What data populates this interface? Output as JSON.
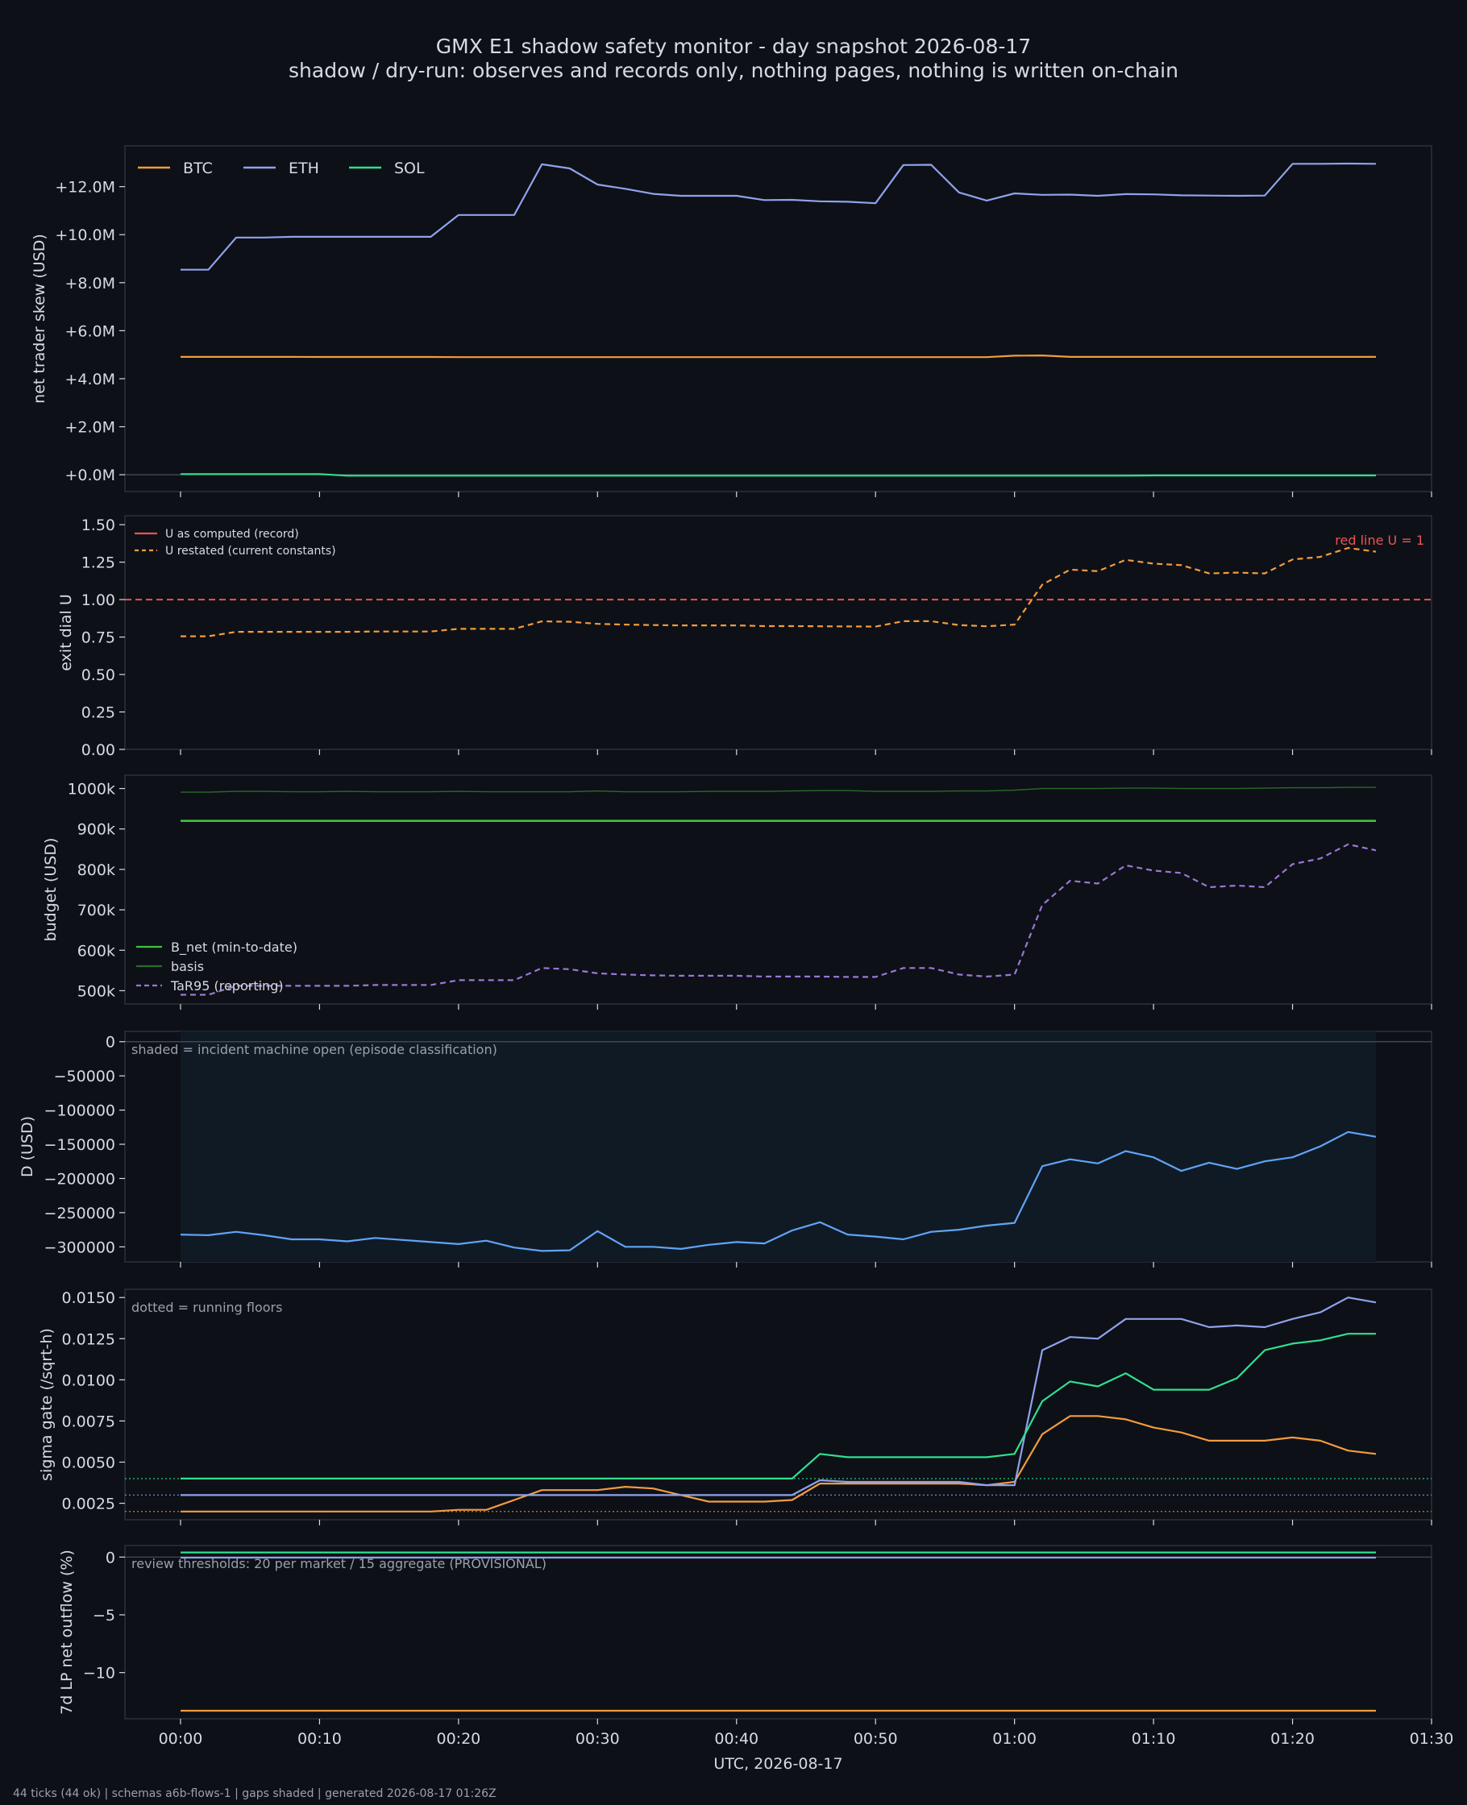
{
  "title": "GMX E1 shadow safety monitor - day snapshot 2026-08-17",
  "subtitle": "shadow / dry-run: observes and records only, nothing pages, nothing is written on-chain",
  "footer": "44 ticks (44 ok) | schemas a6b-flows-1 | gaps shaded | generated 2026-08-17 01:26Z",
  "colors": {
    "background": "#0d1017",
    "frame": "#2c313b",
    "text": "#d7dae0",
    "muted": "#9aa0aa",
    "btc": "#f39c3c",
    "eth": "#8fa3ec",
    "sol": "#2fe08f",
    "red": "#ee5350",
    "b_net": "#3fc23f",
    "basis": "#2a6a2a",
    "tar95": "#9a78d4",
    "d": "#61a4f5",
    "shade": "#101a25"
  },
  "chart_data": [
    {
      "type": "line",
      "ylabel": "net trader skew (USD)",
      "ylim": [
        -700000,
        13700000
      ],
      "yticks": [
        0,
        2000000,
        4000000,
        6000000,
        8000000,
        10000000,
        12000000
      ],
      "yticklabels": [
        "+0.0M",
        "+2.0M",
        "+4.0M",
        "+6.0M",
        "+8.0M",
        "+10.0M",
        "+12.0M"
      ],
      "zero_line": true,
      "legend": {
        "position": "top-left",
        "layout": "horizontal"
      },
      "series": [
        {
          "name": "BTC",
          "color_key": "btc",
          "values": [
            4910000,
            4910000,
            4910000,
            4910000,
            4910000,
            4905000,
            4905000,
            4905000,
            4905000,
            4905000,
            4900000,
            4900000,
            4900000,
            4900000,
            4900000,
            4900000,
            4900000,
            4900000,
            4900000,
            4900000,
            4900000,
            4900000,
            4900000,
            4900000,
            4900000,
            4900000,
            4900000,
            4900000,
            4900000,
            4900000,
            4960000,
            4970000,
            4910000,
            4910000,
            4910000,
            4910000,
            4910000,
            4910000,
            4910000,
            4910000,
            4910000,
            4910000,
            4910000,
            4910000
          ]
        },
        {
          "name": "ETH",
          "color_key": "eth",
          "values": [
            8540000,
            8540000,
            9880000,
            9880000,
            9910000,
            9910000,
            9910000,
            9910000,
            9910000,
            9910000,
            10820000,
            10820000,
            10820000,
            12930000,
            12760000,
            12090000,
            11910000,
            11700000,
            11620000,
            11620000,
            11620000,
            11440000,
            11450000,
            11390000,
            11370000,
            11310000,
            12900000,
            12910000,
            11760000,
            11420000,
            11720000,
            11660000,
            11670000,
            11620000,
            11690000,
            11680000,
            11640000,
            11630000,
            11620000,
            11630000,
            12950000,
            12950000,
            12960000,
            12950000
          ]
        },
        {
          "name": "SOL",
          "color_key": "sol",
          "values": [
            30000,
            30000,
            30000,
            30000,
            30000,
            30000,
            -40000,
            -40000,
            -40000,
            -40000,
            -40000,
            -40000,
            -40000,
            -40000,
            -40000,
            -40000,
            -40000,
            -40000,
            -40000,
            -40000,
            -40000,
            -40000,
            -40000,
            -40000,
            -40000,
            -40000,
            -40000,
            -40000,
            -40000,
            -40000,
            -40000,
            -40000,
            -40000,
            -40000,
            -40000,
            -30000,
            -30000,
            -30000,
            -30000,
            -30000,
            -30000,
            -30000,
            -30000,
            -30000
          ]
        }
      ]
    },
    {
      "type": "line",
      "ylabel": "exit dial U",
      "ylim": [
        0,
        1.56
      ],
      "yticks": [
        0,
        0.25,
        0.5,
        0.75,
        1.0,
        1.25,
        1.5
      ],
      "yticklabels": [
        "0.00",
        "0.25",
        "0.50",
        "0.75",
        "1.00",
        "1.25",
        "1.50"
      ],
      "reference_line": {
        "y": 1.0,
        "label": "red line U = 1",
        "color_key": "red"
      },
      "legend": {
        "position": "top-left",
        "layout": "vertical"
      },
      "series": [
        {
          "name": "U as computed (record)",
          "color_key": "red",
          "legend_only": true
        },
        {
          "name": "U restated (current constants)",
          "color_key": "btc",
          "dashed": true,
          "values": [
            0.755,
            0.755,
            0.785,
            0.785,
            0.785,
            0.785,
            0.785,
            0.787,
            0.787,
            0.787,
            0.805,
            0.805,
            0.805,
            0.855,
            0.852,
            0.838,
            0.833,
            0.83,
            0.828,
            0.828,
            0.828,
            0.823,
            0.823,
            0.822,
            0.821,
            0.82,
            0.856,
            0.856,
            0.83,
            0.822,
            0.833,
            1.1,
            1.2,
            1.19,
            1.265,
            1.24,
            1.23,
            1.175,
            1.18,
            1.175,
            1.268,
            1.285,
            1.345,
            1.32
          ]
        }
      ]
    },
    {
      "type": "line",
      "ylabel": "budget (USD)",
      "ylim": [
        467000,
        1033000
      ],
      "yticks": [
        500000,
        600000,
        700000,
        800000,
        900000,
        1000000
      ],
      "yticklabels": [
        "500k",
        "600k",
        "700k",
        "800k",
        "900k",
        "1000k"
      ],
      "legend": {
        "position": "bottom-left",
        "layout": "vertical"
      },
      "series": [
        {
          "name": "B_net (min-to-date)",
          "color_key": "b_net",
          "values": [
            920000,
            920000,
            920000,
            920000,
            920000,
            920000,
            920000,
            920000,
            920000,
            920000,
            920000,
            920000,
            920000,
            920000,
            920000,
            920000,
            920000,
            920000,
            920000,
            920000,
            920000,
            920000,
            920000,
            920000,
            920000,
            920000,
            920000,
            920000,
            920000,
            920000,
            920000,
            920000,
            920000,
            920000,
            920000,
            920000,
            920000,
            920000,
            920000,
            920000,
            920000,
            920000,
            920000,
            920000
          ]
        },
        {
          "name": "basis",
          "color_key": "basis",
          "values": [
            991000,
            991000,
            993000,
            993000,
            992000,
            992000,
            993000,
            992000,
            992000,
            992000,
            993000,
            992000,
            992000,
            992000,
            992000,
            994000,
            992000,
            992000,
            992000,
            993000,
            993000,
            993000,
            994000,
            995000,
            995000,
            993000,
            993000,
            993000,
            994000,
            994000,
            996000,
            1000000,
            1000000,
            1000000,
            1001000,
            1001000,
            1000000,
            1000000,
            1000000,
            1001000,
            1002000,
            1002000,
            1003000,
            1003000
          ]
        },
        {
          "name": "TaR95 (reporting)",
          "color_key": "tar95",
          "dashed": true,
          "values": [
            490000,
            490000,
            512000,
            512000,
            512000,
            512000,
            512000,
            514000,
            514000,
            514000,
            526000,
            526000,
            526000,
            556000,
            553000,
            543000,
            540000,
            538000,
            537000,
            537000,
            537000,
            535000,
            535000,
            535000,
            534000,
            534000,
            556000,
            556000,
            540000,
            535000,
            540000,
            712000,
            772000,
            765000,
            810000,
            797000,
            791000,
            756000,
            760000,
            756000,
            813000,
            827000,
            862000,
            847000
          ]
        }
      ]
    },
    {
      "type": "line",
      "ylabel": "D (USD)",
      "ylim": [
        -322000,
        15000
      ],
      "yticks": [
        0,
        -50000,
        -100000,
        -150000,
        -200000,
        -250000,
        -300000
      ],
      "yticklabels": [
        "0",
        "−50000",
        "−100000",
        "−150000",
        "−200000",
        "−250000",
        "−300000"
      ],
      "zero_line": true,
      "shaded_span_minutes": [
        0,
        86
      ],
      "annotation": "shaded = incident machine open (episode classification)",
      "series": [
        {
          "name": "D",
          "color_key": "d",
          "values": [
            -282000,
            -283000,
            -278000,
            -283000,
            -289000,
            -289000,
            -292000,
            -287000,
            -290000,
            -293000,
            -296000,
            -291000,
            -301000,
            -306000,
            -305000,
            -277000,
            -300000,
            -300000,
            -303000,
            -297000,
            -293000,
            -295000,
            -276000,
            -264000,
            -282000,
            -285000,
            -289000,
            -278000,
            -275000,
            -269000,
            -265000,
            -182000,
            -172000,
            -178000,
            -160000,
            -169000,
            -189000,
            -177000,
            -186000,
            -175000,
            -169000,
            -153000,
            -132000,
            -139000
          ]
        }
      ]
    },
    {
      "type": "line",
      "ylabel": "sigma gate (/sqrt-h)",
      "ylim": [
        0.0015,
        0.0155
      ],
      "yticks": [
        0.0025,
        0.005,
        0.0075,
        0.01,
        0.0125,
        0.015
      ],
      "yticklabels": [
        "0.0025",
        "0.0050",
        "0.0075",
        "0.0100",
        "0.0125",
        "0.0150"
      ],
      "annotation": "dotted = running floors",
      "floors": [
        {
          "market": "BTC",
          "y": 0.002,
          "color_key": "btc"
        },
        {
          "market": "ETH",
          "y": 0.003,
          "color_key": "eth"
        },
        {
          "market": "SOL",
          "y": 0.004,
          "color_key": "sol"
        }
      ],
      "series": [
        {
          "name": "BTC",
          "color_key": "btc",
          "values": [
            0.002,
            0.002,
            0.002,
            0.002,
            0.002,
            0.002,
            0.002,
            0.002,
            0.002,
            0.002,
            0.0021,
            0.0021,
            0.0027,
            0.0033,
            0.0033,
            0.0033,
            0.0035,
            0.0034,
            0.003,
            0.0026,
            0.0026,
            0.0026,
            0.0027,
            0.0037,
            0.0037,
            0.0037,
            0.0037,
            0.0037,
            0.0037,
            0.0036,
            0.0038,
            0.0067,
            0.0078,
            0.0078,
            0.0076,
            0.0071,
            0.0068,
            0.0063,
            0.0063,
            0.0063,
            0.0065,
            0.0063,
            0.0057,
            0.0055
          ]
        },
        {
          "name": "ETH",
          "color_key": "eth",
          "values": [
            0.003,
            0.003,
            0.003,
            0.003,
            0.003,
            0.003,
            0.003,
            0.003,
            0.003,
            0.003,
            0.003,
            0.003,
            0.003,
            0.003,
            0.003,
            0.003,
            0.003,
            0.003,
            0.003,
            0.003,
            0.003,
            0.003,
            0.003,
            0.0039,
            0.0038,
            0.0038,
            0.0038,
            0.0038,
            0.0038,
            0.0036,
            0.0036,
            0.0118,
            0.0126,
            0.0125,
            0.0137,
            0.0137,
            0.0137,
            0.0132,
            0.0133,
            0.0132,
            0.0137,
            0.0141,
            0.015,
            0.0147
          ]
        },
        {
          "name": "SOL",
          "color_key": "sol",
          "values": [
            0.004,
            0.004,
            0.004,
            0.004,
            0.004,
            0.004,
            0.004,
            0.004,
            0.004,
            0.004,
            0.004,
            0.004,
            0.004,
            0.004,
            0.004,
            0.004,
            0.004,
            0.004,
            0.004,
            0.004,
            0.004,
            0.004,
            0.004,
            0.0055,
            0.0053,
            0.0053,
            0.0053,
            0.0053,
            0.0053,
            0.0053,
            0.0055,
            0.0087,
            0.0099,
            0.0096,
            0.0104,
            0.0094,
            0.0094,
            0.0094,
            0.0101,
            0.0118,
            0.0122,
            0.0124,
            0.0128,
            0.0128
          ]
        }
      ]
    },
    {
      "type": "line",
      "ylabel": "7d LP net outflow (%)",
      "ylim": [
        -14,
        1
      ],
      "yticks": [
        0,
        -5,
        -10
      ],
      "yticklabels": [
        "0",
        "−5",
        "−10"
      ],
      "zero_line": true,
      "annotation": "review thresholds: 20 per market / 15 aggregate (PROVISIONAL)",
      "xlabel": "UTC, 2026-08-17",
      "xlim": [
        -4,
        90
      ],
      "xticks": [
        0,
        10,
        20,
        30,
        40,
        50,
        60,
        70,
        80,
        90
      ],
      "xticklabels": [
        "00:00",
        "00:10",
        "00:20",
        "00:30",
        "00:40",
        "00:50",
        "01:00",
        "01:10",
        "01:20",
        "01:30"
      ],
      "series": [
        {
          "name": "BTC",
          "color_key": "btc",
          "values": [
            -13.3,
            -13.3,
            -13.3,
            -13.3,
            -13.3,
            -13.3,
            -13.3,
            -13.3,
            -13.3,
            -13.3,
            -13.3,
            -13.3,
            -13.3,
            -13.3,
            -13.3,
            -13.3,
            -13.3,
            -13.3,
            -13.3,
            -13.3,
            -13.3,
            -13.3,
            -13.3,
            -13.3,
            -13.3,
            -13.3,
            -13.3,
            -13.3,
            -13.3,
            -13.3,
            -13.3,
            -13.3,
            -13.3,
            -13.3,
            -13.3,
            -13.3,
            -13.3,
            -13.3,
            -13.3,
            -13.3,
            -13.3,
            -13.3,
            -13.3,
            -13.3
          ]
        },
        {
          "name": "ETH",
          "color_key": "eth",
          "values": [
            -0.05,
            -0.05,
            -0.05,
            -0.05,
            -0.05,
            -0.05,
            -0.05,
            -0.05,
            -0.05,
            -0.05,
            -0.05,
            -0.05,
            -0.05,
            -0.05,
            -0.05,
            -0.05,
            -0.05,
            -0.05,
            -0.05,
            -0.05,
            -0.05,
            -0.05,
            -0.05,
            -0.05,
            -0.05,
            -0.05,
            -0.05,
            -0.05,
            -0.05,
            -0.05,
            -0.05,
            -0.05,
            -0.05,
            -0.05,
            -0.05,
            -0.05,
            -0.05,
            -0.05,
            -0.05,
            -0.05,
            -0.05,
            -0.05,
            -0.05,
            -0.05
          ]
        },
        {
          "name": "SOL",
          "color_key": "sol",
          "values": [
            0.4,
            0.4,
            0.4,
            0.4,
            0.4,
            0.4,
            0.4,
            0.4,
            0.4,
            0.4,
            0.4,
            0.4,
            0.4,
            0.4,
            0.4,
            0.4,
            0.4,
            0.4,
            0.4,
            0.4,
            0.4,
            0.4,
            0.4,
            0.4,
            0.4,
            0.4,
            0.4,
            0.4,
            0.4,
            0.4,
            0.4,
            0.4,
            0.4,
            0.4,
            0.4,
            0.4,
            0.4,
            0.4,
            0.4,
            0.4,
            0.4,
            0.4,
            0.4,
            0.4
          ]
        }
      ]
    }
  ]
}
